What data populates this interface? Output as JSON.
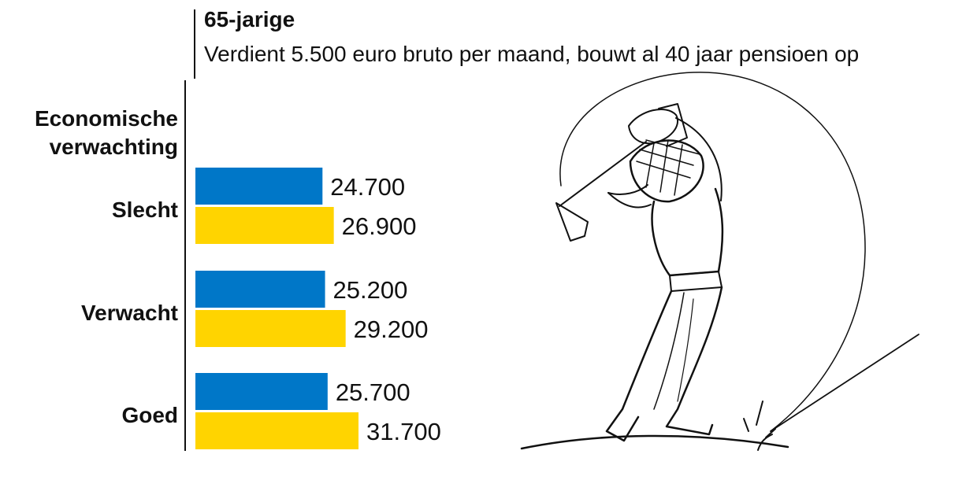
{
  "header": {
    "title": "65-jarige",
    "subtitle": "Verdient 5.500 euro bruto per maand, bouwt al 40 jaar pensioen op"
  },
  "axis": {
    "category_header_line1": "Economische",
    "category_header_line2": "verwachting"
  },
  "colors": {
    "series_a": "#0077C8",
    "series_b": "#FFD400"
  },
  "illustration": {
    "icon": "golfer-swinging-icon"
  },
  "chart_data": {
    "type": "bar",
    "orientation": "horizontal",
    "title": "65-jarige",
    "subtitle": "Verdient 5.500 euro bruto per maand, bouwt al 40 jaar pensioen op",
    "categories": [
      "Slecht",
      "Verwacht",
      "Goed"
    ],
    "category_labels": [
      "Slecht",
      "Verwacht",
      "Goed"
    ],
    "series": [
      {
        "values": [
          24700,
          25200,
          25700
        ],
        "labels": [
          "24.700",
          "25.200",
          "25.700"
        ],
        "color": "#0077C8"
      },
      {
        "values": [
          26900,
          29200,
          31700
        ],
        "labels": [
          "26.900",
          "29.200",
          "31.700"
        ],
        "color": "#FFD400"
      }
    ],
    "xlim": [
      0,
      31700
    ],
    "grid": false,
    "legend": "none"
  }
}
